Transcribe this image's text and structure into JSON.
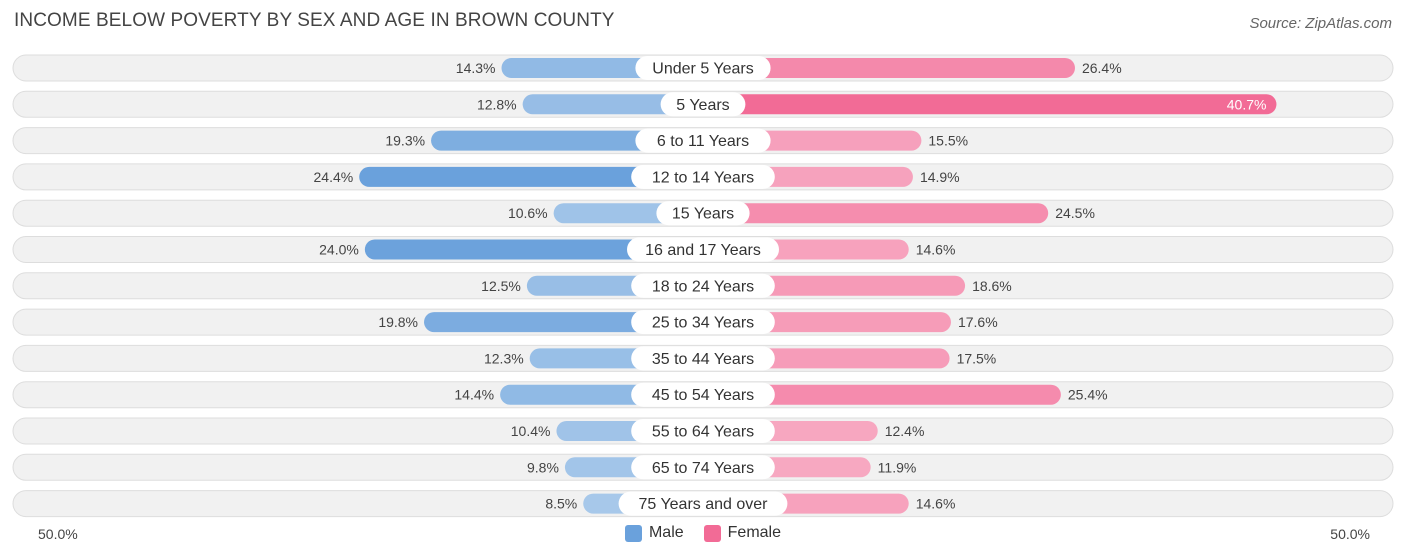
{
  "chart_data": {
    "type": "bar",
    "orientation": "diverging-horizontal",
    "title": "INCOME BELOW POVERTY BY SEX AND AGE IN BROWN COUNTY",
    "source": "Source: ZipAtlas.com",
    "categories": [
      "Under 5 Years",
      "5 Years",
      "6 to 11 Years",
      "12 to 14 Years",
      "15 Years",
      "16 and 17 Years",
      "18 to 24 Years",
      "25 to 34 Years",
      "35 to 44 Years",
      "45 to 54 Years",
      "55 to 64 Years",
      "65 to 74 Years",
      "75 Years and over"
    ],
    "series": [
      {
        "name": "Male",
        "values": [
          14.3,
          12.8,
          19.3,
          24.4,
          10.6,
          24.0,
          12.5,
          19.8,
          12.3,
          14.4,
          10.4,
          9.8,
          8.5
        ]
      },
      {
        "name": "Female",
        "values": [
          26.4,
          40.7,
          15.5,
          14.9,
          24.5,
          14.6,
          18.6,
          17.6,
          17.5,
          25.4,
          12.4,
          11.9,
          14.6
        ]
      }
    ],
    "xlim": [
      -50,
      50
    ],
    "axis_left_label": "50.0%",
    "axis_right_label": "50.0%",
    "value_suffix": "%"
  },
  "legend": {
    "male_label": "Male",
    "female_label": "Female"
  },
  "colors": {
    "male": "#6aa1dc",
    "male_light": "#a7c8ea",
    "female": "#f26b96",
    "female_light": "#f7a8c1",
    "track": "#f1f1f1",
    "track_border": "#dddddd"
  }
}
